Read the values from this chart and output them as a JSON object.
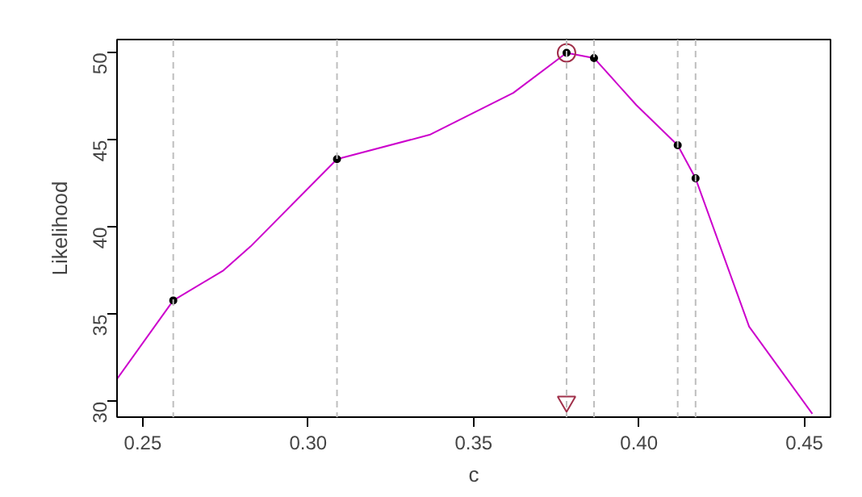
{
  "chart_data": {
    "type": "line",
    "xlabel": "c",
    "ylabel": "Likelihood",
    "xlim": [
      0.2422,
      0.4579
    ],
    "ylim": [
      29.11,
      50.76
    ],
    "xticks": [
      {
        "value": 0.25,
        "label": "0.25"
      },
      {
        "value": 0.3,
        "label": "0.30"
      },
      {
        "value": 0.35,
        "label": "0.35"
      },
      {
        "value": 0.4,
        "label": "0.40"
      },
      {
        "value": 0.45,
        "label": "0.45"
      }
    ],
    "yticks": [
      30,
      35,
      40,
      45,
      50
    ],
    "grid": false,
    "series": [
      {
        "marker": "none",
        "color": "#cc00cc",
        "x": [
          0.2422,
          0.2592,
          0.2742,
          0.2826,
          0.3087,
          0.3367,
          0.362,
          0.3781,
          0.3864,
          0.3992,
          0.4117,
          0.4171,
          0.4333,
          0.4524
        ],
        "values": [
          31.3,
          35.8,
          37.5,
          38.9,
          43.9,
          45.3,
          47.7,
          50.0,
          49.7,
          47.0,
          44.7,
          42.8,
          34.3,
          29.3
        ]
      },
      {
        "type": "scatter",
        "marker": "circle",
        "color": "#000000",
        "x": [
          0.2592,
          0.3087,
          0.3781,
          0.3864,
          0.4117,
          0.4171
        ],
        "values": [
          35.8,
          43.9,
          50.0,
          49.7,
          44.7,
          42.8
        ]
      },
      {
        "type": "scatter",
        "marker": "circle",
        "color": "#a0304a",
        "x": [
          0.3781
        ],
        "values": [
          50.0
        ]
      },
      {
        "type": "scatter",
        "marker": "triangle",
        "color": "#a0304a",
        "x": [
          0.3781
        ],
        "values": [
          30.0
        ]
      }
    ],
    "ref_lines": [
      {
        "axis": "x",
        "value": 0.2592,
        "color": "#bebebe",
        "line_style": "dashed"
      },
      {
        "axis": "x",
        "value": 0.3087,
        "color": "#bebebe",
        "line_style": "dashed"
      },
      {
        "axis": "x",
        "value": 0.3781,
        "color": "#bebebe",
        "line_style": "dashed"
      },
      {
        "axis": "x",
        "value": 0.3864,
        "color": "#bebebe",
        "line_style": "dashed"
      },
      {
        "axis": "x",
        "value": 0.4117,
        "color": "#bebebe",
        "line_style": "dashed"
      },
      {
        "axis": "x",
        "value": 0.4171,
        "color": "#bebebe",
        "line_style": "dashed"
      }
    ]
  }
}
